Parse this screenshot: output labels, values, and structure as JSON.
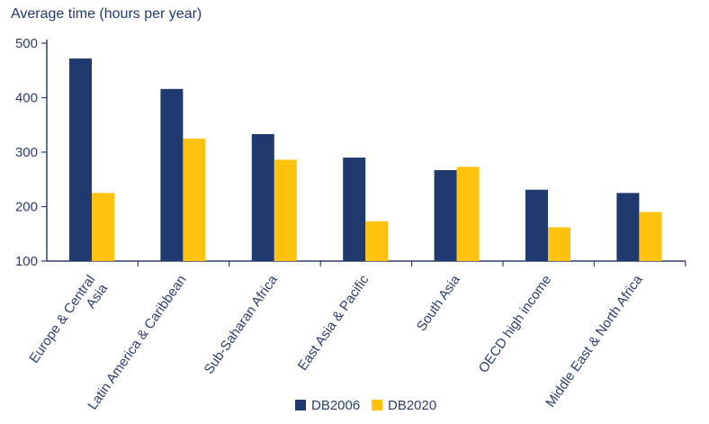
{
  "chart_data": {
    "type": "bar",
    "ylabel": "Average time (hours per year)",
    "categories": [
      [
        "Europe & Central",
        "Asia"
      ],
      [
        "Latin America & Caribbean"
      ],
      [
        "Sub-Saharan Africa"
      ],
      [
        "East Asia & Pacific"
      ],
      [
        "South Asia"
      ],
      [
        "OECD high income"
      ],
      [
        "Middle East & North Africa"
      ]
    ],
    "series": [
      {
        "name": "DB2006",
        "color": "#1f3a6e",
        "values": [
          472,
          416,
          333,
          290,
          267,
          231,
          225
        ]
      },
      {
        "name": "DB2020",
        "color": "#ffc20e",
        "values": [
          225,
          325,
          286,
          173,
          273,
          162,
          190
        ]
      }
    ],
    "ylim": [
      100,
      500
    ],
    "yticks": [
      100,
      200,
      300,
      400,
      500
    ],
    "grid": false,
    "legend_position": "bottom"
  }
}
